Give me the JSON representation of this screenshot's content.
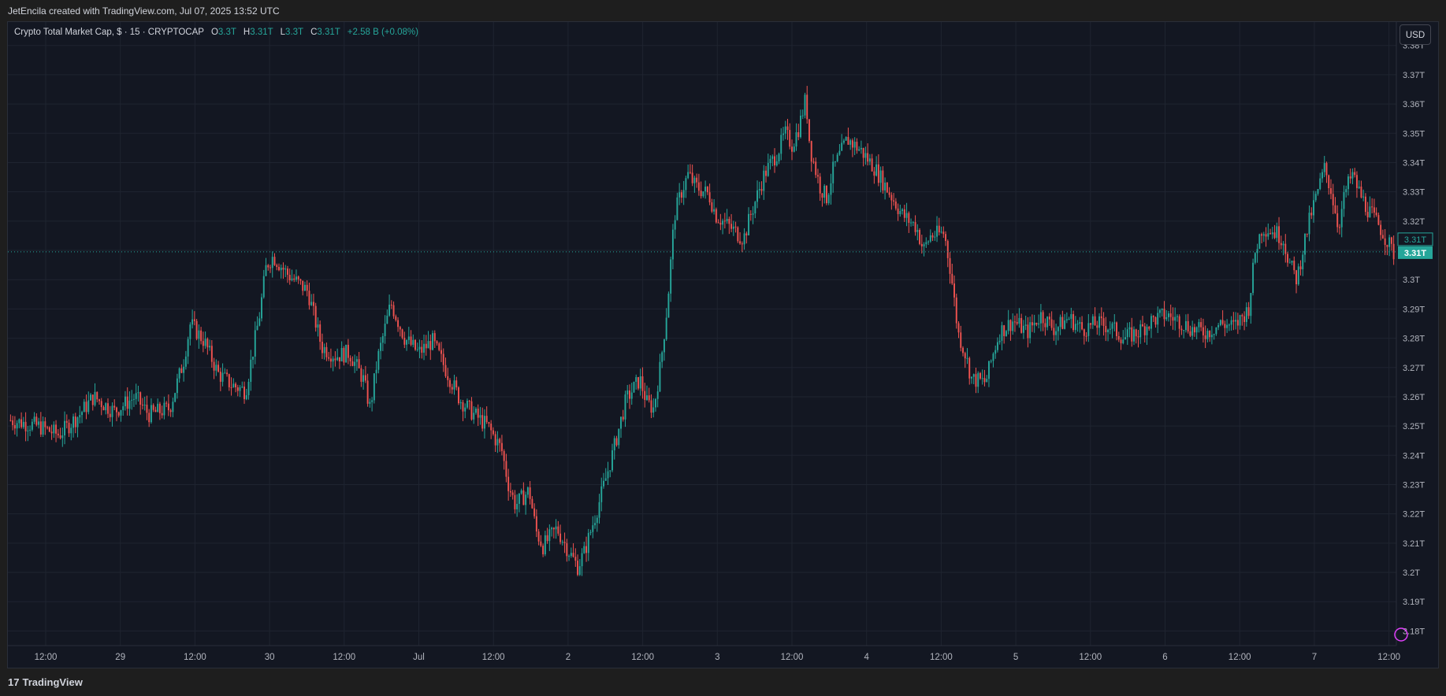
{
  "header": {
    "attribution": "JetEncila created with TradingView.com, Jul 07, 2025 13:52 UTC"
  },
  "legend": {
    "symbol": "Crypto Total Market Cap, $ · 15 · CRYPTOCAP",
    "o_label": "O",
    "o_value": "3.3T",
    "h_label": "H",
    "h_value": "3.31T",
    "l_label": "L",
    "l_value": "3.3T",
    "c_label": "C",
    "c_value": "3.31T",
    "change": "+2.58 B (+0.08%)"
  },
  "currency_button": "USD",
  "footer": {
    "brand": "TradingView",
    "mark": "17"
  },
  "colors": {
    "up": "#26a69a",
    "down": "#ef5350",
    "grid": "#1f2430",
    "background": "#131722",
    "accent": "#26a69a",
    "marker": "#e040fb"
  },
  "chart_data": {
    "type": "candlestick",
    "title": "Crypto Total Market Cap",
    "interval": "15",
    "unit": "T",
    "ylim": [
      3.175,
      3.388
    ],
    "y_ticks": [
      "3.18T",
      "3.19T",
      "3.2T",
      "3.21T",
      "3.22T",
      "3.23T",
      "3.24T",
      "3.25T",
      "3.26T",
      "3.27T",
      "3.28T",
      "3.29T",
      "3.3T",
      "3.31T",
      "3.32T",
      "3.33T",
      "3.34T",
      "3.35T",
      "3.36T",
      "3.37T",
      "3.38T"
    ],
    "x_ticks": [
      "12:00",
      "29",
      "12:00",
      "30",
      "12:00",
      "Jul",
      "12:00",
      "2",
      "12:00",
      "3",
      "12:00",
      "4",
      "12:00",
      "5",
      "12:00",
      "6",
      "12:00",
      "7",
      "12:00"
    ],
    "last_price_label": "3.31T",
    "last_price_label_2": "3.31T",
    "last_price": 3.3095,
    "path_points": [
      [
        0,
        3.252
      ],
      [
        0.02,
        3.25
      ],
      [
        0.035,
        3.247
      ],
      [
        0.05,
        3.254
      ],
      [
        0.06,
        3.26
      ],
      [
        0.075,
        3.255
      ],
      [
        0.09,
        3.26
      ],
      [
        0.1,
        3.254
      ],
      [
        0.115,
        3.256
      ],
      [
        0.125,
        3.272
      ],
      [
        0.13,
        3.285
      ],
      [
        0.14,
        3.279
      ],
      [
        0.15,
        3.268
      ],
      [
        0.16,
        3.264
      ],
      [
        0.17,
        3.262
      ],
      [
        0.18,
        3.288
      ],
      [
        0.185,
        3.305
      ],
      [
        0.19,
        3.308
      ],
      [
        0.2,
        3.302
      ],
      [
        0.215,
        3.296
      ],
      [
        0.225,
        3.277
      ],
      [
        0.235,
        3.274
      ],
      [
        0.245,
        3.275
      ],
      [
        0.255,
        3.266
      ],
      [
        0.26,
        3.256
      ],
      [
        0.265,
        3.272
      ],
      [
        0.275,
        3.292
      ],
      [
        0.285,
        3.28
      ],
      [
        0.295,
        3.275
      ],
      [
        0.305,
        3.279
      ],
      [
        0.315,
        3.269
      ],
      [
        0.325,
        3.259
      ],
      [
        0.335,
        3.254
      ],
      [
        0.345,
        3.25
      ],
      [
        0.355,
        3.242
      ],
      [
        0.36,
        3.23
      ],
      [
        0.365,
        3.223
      ],
      [
        0.375,
        3.228
      ],
      [
        0.38,
        3.214
      ],
      [
        0.385,
        3.209
      ],
      [
        0.395,
        3.215
      ],
      [
        0.405,
        3.206
      ],
      [
        0.41,
        3.202
      ],
      [
        0.415,
        3.207
      ],
      [
        0.425,
        3.223
      ],
      [
        0.435,
        3.24
      ],
      [
        0.445,
        3.259
      ],
      [
        0.455,
        3.266
      ],
      [
        0.46,
        3.258
      ],
      [
        0.465,
        3.256
      ],
      [
        0.47,
        3.271
      ],
      [
        0.475,
        3.292
      ],
      [
        0.48,
        3.322
      ],
      [
        0.485,
        3.33
      ],
      [
        0.49,
        3.336
      ],
      [
        0.495,
        3.332
      ],
      [
        0.505,
        3.329
      ],
      [
        0.51,
        3.322
      ],
      [
        0.52,
        3.318
      ],
      [
        0.53,
        3.314
      ],
      [
        0.535,
        3.322
      ],
      [
        0.545,
        3.336
      ],
      [
        0.555,
        3.344
      ],
      [
        0.56,
        3.35
      ],
      [
        0.565,
        3.346
      ],
      [
        0.57,
        3.352
      ],
      [
        0.575,
        3.362
      ],
      [
        0.578,
        3.345
      ],
      [
        0.585,
        3.332
      ],
      [
        0.59,
        3.328
      ],
      [
        0.595,
        3.338
      ],
      [
        0.605,
        3.348
      ],
      [
        0.615,
        3.344
      ],
      [
        0.625,
        3.338
      ],
      [
        0.635,
        3.33
      ],
      [
        0.645,
        3.322
      ],
      [
        0.655,
        3.318
      ],
      [
        0.66,
        3.31
      ],
      [
        0.665,
        3.315
      ],
      [
        0.675,
        3.316
      ],
      [
        0.68,
        3.302
      ],
      [
        0.685,
        3.282
      ],
      [
        0.69,
        3.275
      ],
      [
        0.695,
        3.266
      ],
      [
        0.705,
        3.265
      ],
      [
        0.71,
        3.274
      ],
      [
        0.715,
        3.282
      ],
      [
        0.725,
        3.286
      ],
      [
        0.735,
        3.282
      ],
      [
        0.745,
        3.288
      ],
      [
        0.755,
        3.283
      ],
      [
        0.765,
        3.287
      ],
      [
        0.775,
        3.283
      ],
      [
        0.785,
        3.285
      ],
      [
        0.795,
        3.284
      ],
      [
        0.805,
        3.28
      ],
      [
        0.815,
        3.282
      ],
      [
        0.825,
        3.286
      ],
      [
        0.835,
        3.288
      ],
      [
        0.845,
        3.286
      ],
      [
        0.855,
        3.283
      ],
      [
        0.865,
        3.282
      ],
      [
        0.875,
        3.285
      ],
      [
        0.885,
        3.284
      ],
      [
        0.895,
        3.29
      ],
      [
        0.9,
        3.31
      ],
      [
        0.905,
        3.318
      ],
      [
        0.915,
        3.316
      ],
      [
        0.92,
        3.314
      ],
      [
        0.925,
        3.305
      ],
      [
        0.93,
        3.3
      ],
      [
        0.935,
        3.312
      ],
      [
        0.94,
        3.322
      ],
      [
        0.945,
        3.33
      ],
      [
        0.95,
        3.338
      ],
      [
        0.955,
        3.33
      ],
      [
        0.96,
        3.318
      ],
      [
        0.965,
        3.33
      ],
      [
        0.97,
        3.336
      ],
      [
        0.975,
        3.33
      ],
      [
        0.98,
        3.325
      ],
      [
        0.99,
        3.318
      ],
      [
        1.0,
        3.309
      ]
    ]
  }
}
